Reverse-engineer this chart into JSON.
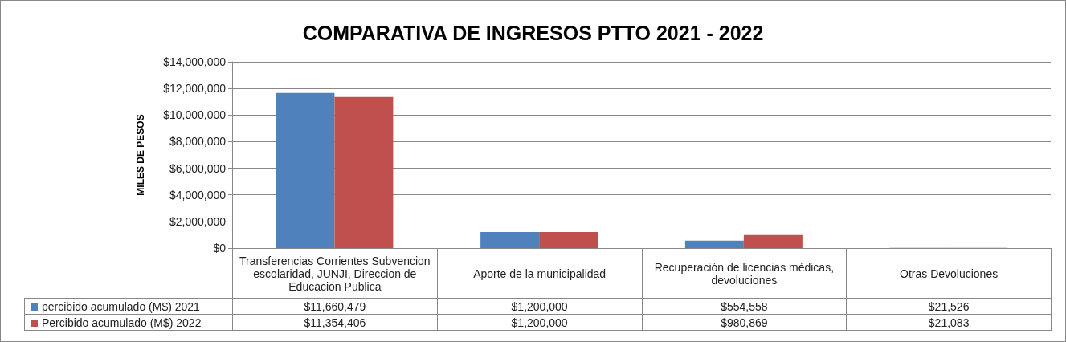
{
  "chart_data": {
    "type": "bar",
    "title": "COMPARATIVA DE INGRESOS PTTO 2021 - 2022",
    "ylabel": "MILES DE PESOS",
    "categories": [
      "Transferencias Corrientes Subvencion escolaridad, JUNJI, Direccion de Educacion Publica",
      "Aporte de la municipalidad",
      "Recuperación de licencias médicas, devoluciones",
      "Otras Devoluciones"
    ],
    "series": [
      {
        "name": "percibido acumulado (M$) 2021",
        "color": "#4f81bd",
        "values": [
          11660479,
          1200000,
          554558,
          21526
        ],
        "value_labels": [
          "$11,660,479",
          "$1,200,000",
          "$554,558",
          "$21,526"
        ]
      },
      {
        "name": "Percibido acumulado (M$) 2022",
        "color": "#c0504d",
        "values": [
          11354406,
          1200000,
          980869,
          21083
        ],
        "value_labels": [
          "$11,354,406",
          "$1,200,000",
          "$980,869",
          "$21,083"
        ]
      }
    ],
    "ylim": [
      0,
      14000000
    ],
    "yticks": [
      {
        "value": 0,
        "label": "$0"
      },
      {
        "value": 2000000,
        "label": "$2,000,000"
      },
      {
        "value": 4000000,
        "label": "$4,000,000"
      },
      {
        "value": 6000000,
        "label": "$6,000,000"
      },
      {
        "value": 8000000,
        "label": "$8,000,000"
      },
      {
        "value": 10000000,
        "label": "$10,000,000"
      },
      {
        "value": 12000000,
        "label": "$12,000,000"
      },
      {
        "value": 14000000,
        "label": "$14,000,000"
      }
    ],
    "grid": "y",
    "legend": "bottom left"
  }
}
